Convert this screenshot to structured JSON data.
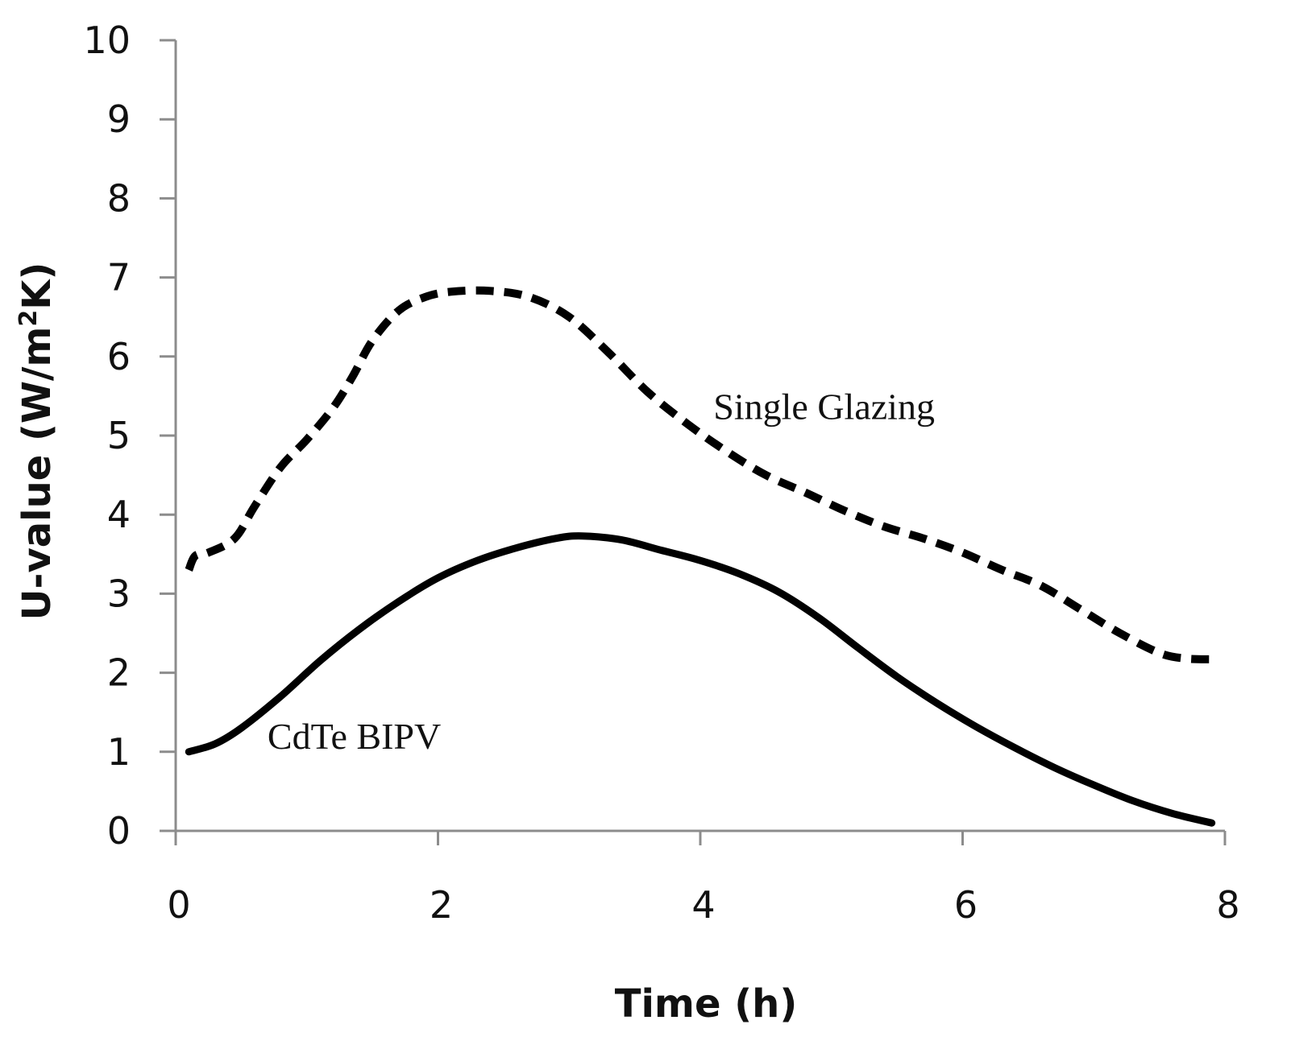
{
  "chart_data": {
    "type": "line",
    "title": "",
    "xlabel": "Time (h)",
    "ylabel_main": "U-value (W/m",
    "ylabel_sup": "2",
    "ylabel_end": "K)",
    "xlim": [
      0,
      8
    ],
    "ylim": [
      0,
      10
    ],
    "xticks": [
      "0",
      "2",
      "4",
      "6",
      "8"
    ],
    "yticks": [
      "0",
      "1",
      "2",
      "3",
      "4",
      "5",
      "6",
      "7",
      "8",
      "9",
      "10"
    ],
    "grid": false,
    "series": [
      {
        "name": "Single Glazing",
        "style": "dashed",
        "color": "#000000",
        "x": [
          0.1,
          0.15,
          0.25,
          0.45,
          0.6,
          0.8,
          1.0,
          1.2,
          1.35,
          1.5,
          1.7,
          1.9,
          2.1,
          2.4,
          2.7,
          3.0,
          3.3,
          3.6,
          3.9,
          4.2,
          4.5,
          4.8,
          5.1,
          5.4,
          5.7,
          6.0,
          6.3,
          6.6,
          6.9,
          7.2,
          7.5,
          7.7,
          7.9
        ],
        "y": [
          3.3,
          3.48,
          3.52,
          3.7,
          4.1,
          4.6,
          4.95,
          5.35,
          5.75,
          6.2,
          6.58,
          6.75,
          6.82,
          6.83,
          6.75,
          6.5,
          6.05,
          5.55,
          5.15,
          4.8,
          4.5,
          4.28,
          4.05,
          3.85,
          3.7,
          3.52,
          3.3,
          3.1,
          2.8,
          2.5,
          2.25,
          2.18,
          2.17
        ]
      },
      {
        "name": "CdTe BIPV",
        "style": "solid",
        "color": "#000000",
        "x": [
          0.1,
          0.3,
          0.5,
          0.8,
          1.1,
          1.4,
          1.7,
          2.0,
          2.3,
          2.6,
          2.9,
          3.1,
          3.4,
          3.7,
          4.0,
          4.3,
          4.6,
          4.9,
          5.2,
          5.5,
          5.8,
          6.1,
          6.4,
          6.7,
          7.0,
          7.3,
          7.6,
          7.9
        ],
        "y": [
          1.0,
          1.1,
          1.3,
          1.7,
          2.15,
          2.55,
          2.9,
          3.2,
          3.42,
          3.58,
          3.7,
          3.73,
          3.68,
          3.55,
          3.42,
          3.25,
          3.02,
          2.7,
          2.32,
          1.95,
          1.62,
          1.32,
          1.05,
          0.8,
          0.58,
          0.38,
          0.22,
          0.1
        ]
      }
    ],
    "annotations": [
      {
        "text": "Single Glazing",
        "x": 4.1,
        "y": 5.35
      },
      {
        "text": "CdTe BIPV",
        "x": 0.7,
        "y": 1.18
      }
    ]
  }
}
